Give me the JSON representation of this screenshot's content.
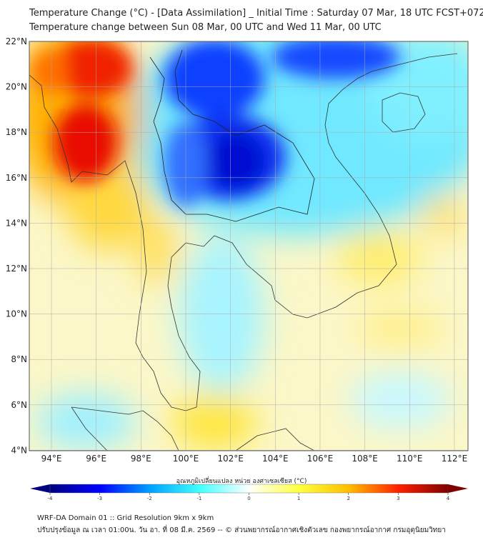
{
  "header": {
    "title": "Temperature Change (°C) - [Data Assimilation] _ Initial Time : Saturday 07 Mar, 18 UTC FCST+072",
    "subtitle": "Temperature change between Sun 08 Mar, 00 UTC and Wed 11 Mar, 00 UTC"
  },
  "map": {
    "lat_labels": [
      "22°N",
      "20°N",
      "18°N",
      "16°N",
      "14°N",
      "12°N",
      "10°N",
      "8°N",
      "6°N",
      "4°N"
    ],
    "lat_values": [
      22,
      20,
      18,
      16,
      14,
      12,
      10,
      8,
      6,
      4
    ],
    "lon_labels": [
      "94°E",
      "96°E",
      "98°E",
      "100°E",
      "102°E",
      "104°E",
      "106°E",
      "108°E",
      "110°E",
      "112°E"
    ],
    "lon_values": [
      94,
      96,
      98,
      100,
      102,
      104,
      106,
      108,
      110,
      112
    ],
    "extent": {
      "lon": [
        93,
        112.6
      ],
      "lat": [
        4,
        22.2
      ]
    }
  },
  "colorbar": {
    "label": "อุณหภูมิเปลี่ยนแปลง หน่วย องศาเซลเซียส (°C)",
    "ticks": [
      "-4",
      "-3",
      "-2",
      "-1",
      "0",
      "1",
      "2",
      "3",
      "4"
    ],
    "range": [
      -4,
      4
    ],
    "colors": [
      "#00007f",
      "#0000ff",
      "#00a0ff",
      "#40ffff",
      "#ffffff",
      "#ffff40",
      "#ffc000",
      "#ff2000",
      "#7f0000"
    ]
  },
  "footer": {
    "line1": "WRF-DA Domain 01 :: Grid Resolution 9km x 9km",
    "line2": "ปรับปรุงข้อมูล ณ เวลา 01:00น. วัน อา. ที่ 08 มี.ค. 2569 -- © ส่วนพยากรณ์อากาศเชิงตัวเลข กองพยากรณ์อากาศ กรมอุตุนิยมวิทยา"
  }
}
